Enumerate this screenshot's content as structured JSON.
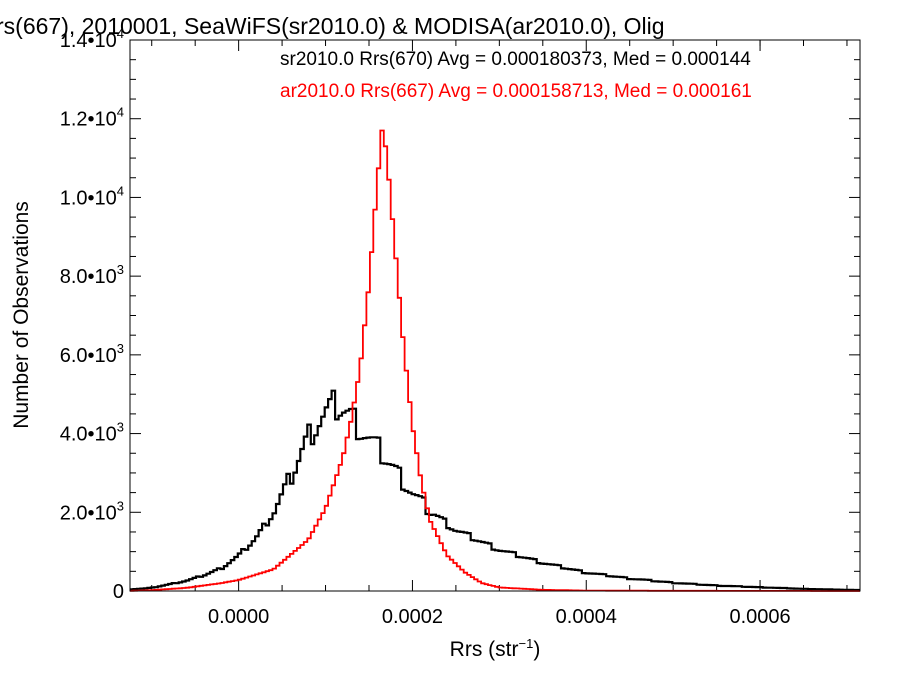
{
  "chart_data": {
    "type": "line",
    "style": "histogram-step",
    "title": "rs(667), 2010001, SeaWiFS(sr2010.0) & MODISA(ar2010.0), Olig",
    "xlabel": "Rrs (str",
    "xlabel_superscript": "−1",
    "xlabel_suffix": ")",
    "ylabel": "Number of Observations",
    "xlim": [
      -0.000125,
      0.000715
    ],
    "ylim": [
      0,
      14000
    ],
    "x_ticks": [
      {
        "value": 0.0,
        "label": "0.0000"
      },
      {
        "value": 0.0002,
        "label": "0.0002"
      },
      {
        "value": 0.0004,
        "label": "0.0004"
      },
      {
        "value": 0.0006,
        "label": "0.0006"
      }
    ],
    "y_ticks": [
      {
        "value": 0,
        "mant": "0",
        "exp": ""
      },
      {
        "value": 2000,
        "mant": "2.0•10",
        "exp": "3"
      },
      {
        "value": 4000,
        "mant": "4.0•10",
        "exp": "3"
      },
      {
        "value": 6000,
        "mant": "6.0•10",
        "exp": "3"
      },
      {
        "value": 8000,
        "mant": "8.0•10",
        "exp": "3"
      },
      {
        "value": 10000,
        "mant": "1.0•10",
        "exp": "4"
      },
      {
        "value": 12000,
        "mant": "1.2•10",
        "exp": "4"
      },
      {
        "value": 14000,
        "mant": "1.4•10",
        "exp": "4"
      }
    ],
    "grid": false,
    "legend_position": "top-right",
    "series": [
      {
        "name": "sr2010.0 Rrs(670) Avg = 0.000180373, Med = 0.000144",
        "color": "#000000",
        "bin_width": 4e-06,
        "points": [
          [
            -0.000125,
            40
          ],
          [
            -0.0001,
            80
          ],
          [
            -8e-05,
            170
          ],
          [
            -6e-05,
            260
          ],
          [
            -4e-05,
            400
          ],
          [
            -2e-05,
            580
          ],
          [
            0.0,
            900
          ],
          [
            2e-05,
            1350
          ],
          [
            4e-05,
            2000
          ],
          [
            6e-05,
            2900
          ],
          [
            8e-05,
            3950
          ],
          [
            0.0001,
            4550
          ],
          [
            0.00011,
            4750
          ],
          [
            0.00012,
            4650
          ],
          [
            0.00013,
            4450
          ],
          [
            0.00014,
            4150
          ],
          [
            0.00016,
            3650
          ],
          [
            0.00018,
            3100
          ],
          [
            0.0002,
            2500
          ],
          [
            0.00022,
            2050
          ],
          [
            0.00025,
            1550
          ],
          [
            0.0003,
            1050
          ],
          [
            0.00035,
            720
          ],
          [
            0.0004,
            470
          ],
          [
            0.00045,
            320
          ],
          [
            0.0005,
            210
          ],
          [
            0.00055,
            140
          ],
          [
            0.0006,
            95
          ],
          [
            0.00065,
            55
          ],
          [
            0.0007,
            30
          ],
          [
            0.000715,
            25
          ]
        ]
      },
      {
        "name": "ar2010.0 Rrs(667) Avg = 0.000158713, Med = 0.000161",
        "color": "#ff0000",
        "bin_width": 4e-06,
        "points": [
          [
            -0.000125,
            5
          ],
          [
            -0.0001,
            20
          ],
          [
            -6e-05,
            80
          ],
          [
            -2e-05,
            200
          ],
          [
            0.0,
            280
          ],
          [
            4e-05,
            550
          ],
          [
            8e-05,
            1300
          ],
          [
            0.0001,
            2100
          ],
          [
            0.00012,
            3400
          ],
          [
            0.00013,
            4400
          ],
          [
            0.00014,
            5700
          ],
          [
            0.00015,
            7800
          ],
          [
            0.00016,
            10500
          ],
          [
            0.000165,
            11700
          ],
          [
            0.00017,
            11200
          ],
          [
            0.00018,
            8700
          ],
          [
            0.00019,
            6200
          ],
          [
            0.0002,
            4200
          ],
          [
            0.00021,
            2800
          ],
          [
            0.00022,
            1800
          ],
          [
            0.00024,
            900
          ],
          [
            0.00026,
            480
          ],
          [
            0.00028,
            200
          ],
          [
            0.0003,
            90
          ],
          [
            0.00035,
            30
          ],
          [
            0.0004,
            10
          ],
          [
            0.0005,
            5
          ],
          [
            0.000715,
            0
          ]
        ]
      }
    ]
  }
}
